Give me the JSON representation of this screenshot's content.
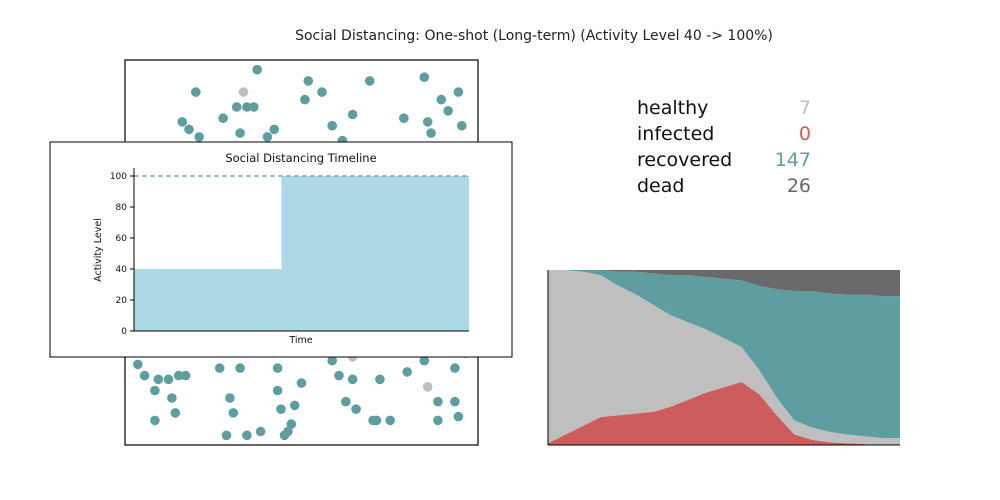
{
  "title": "Social Distancing: One-shot (Long-term) (Activity Level 40 -> 100%)",
  "colors": {
    "healthy": "#bfbfbf",
    "infected": "#cd5c5c",
    "recovered": "#5f9ea0",
    "dead": "#696969",
    "timeline_fill": "#add8e6",
    "timeline_line": "#5f9ea0"
  },
  "stats": [
    {
      "label": "healthy",
      "value": "7",
      "color": "#bfbfbf"
    },
    {
      "label": "infected",
      "value": "0",
      "color": "#cd5c5c"
    },
    {
      "label": "recovered",
      "value": "147",
      "color": "#5f9ea0"
    },
    {
      "label": "dead",
      "value": "26",
      "color": "#696969"
    }
  ],
  "chart_data": [
    {
      "type": "scatter",
      "description_of_state": "population simulation particles",
      "points": [
        {
          "x": 0.19,
          "y": 0.93,
          "s": "recovered"
        },
        {
          "x": 0.33,
          "y": 0.93,
          "s": "healthy"
        },
        {
          "x": 0.36,
          "y": 0.89,
          "s": "recovered"
        },
        {
          "x": 0.37,
          "y": 0.99,
          "s": "recovered"
        },
        {
          "x": 0.52,
          "y": 0.96,
          "s": "recovered"
        },
        {
          "x": 0.51,
          "y": 0.91,
          "s": "recovered"
        },
        {
          "x": 0.56,
          "y": 0.93,
          "s": "recovered"
        },
        {
          "x": 0.7,
          "y": 0.96,
          "s": "recovered"
        },
        {
          "x": 0.86,
          "y": 0.97,
          "s": "recovered"
        },
        {
          "x": 0.91,
          "y": 0.91,
          "s": "recovered"
        },
        {
          "x": 0.96,
          "y": 0.93,
          "s": "recovered"
        },
        {
          "x": 0.15,
          "y": 0.85,
          "s": "recovered"
        },
        {
          "x": 0.27,
          "y": 0.86,
          "s": "recovered"
        },
        {
          "x": 0.31,
          "y": 0.89,
          "s": "recovered"
        },
        {
          "x": 0.34,
          "y": 0.89,
          "s": "recovered"
        },
        {
          "x": 0.17,
          "y": 0.83,
          "s": "recovered"
        },
        {
          "x": 0.65,
          "y": 0.87,
          "s": "recovered"
        },
        {
          "x": 0.8,
          "y": 0.86,
          "s": "recovered"
        },
        {
          "x": 0.87,
          "y": 0.85,
          "s": "recovered"
        },
        {
          "x": 0.93,
          "y": 0.88,
          "s": "recovered"
        },
        {
          "x": 0.97,
          "y": 0.84,
          "s": "recovered"
        },
        {
          "x": 0.2,
          "y": 0.81,
          "s": "recovered"
        },
        {
          "x": 0.32,
          "y": 0.82,
          "s": "recovered"
        },
        {
          "x": 0.42,
          "y": 0.83,
          "s": "recovered"
        },
        {
          "x": 0.4,
          "y": 0.81,
          "s": "recovered"
        },
        {
          "x": 0.59,
          "y": 0.84,
          "s": "recovered"
        },
        {
          "x": 0.62,
          "y": 0.8,
          "s": "recovered"
        },
        {
          "x": 0.88,
          "y": 0.82,
          "s": "recovered"
        },
        {
          "x": 0.94,
          "y": 0.78,
          "s": "recovered"
        },
        {
          "x": 0.02,
          "y": 0.2,
          "s": "recovered"
        },
        {
          "x": 0.04,
          "y": 0.17,
          "s": "recovered"
        },
        {
          "x": 0.08,
          "y": 0.16,
          "s": "recovered"
        },
        {
          "x": 0.11,
          "y": 0.16,
          "s": "recovered"
        },
        {
          "x": 0.14,
          "y": 0.17,
          "s": "recovered"
        },
        {
          "x": 0.16,
          "y": 0.17,
          "s": "recovered"
        },
        {
          "x": 0.26,
          "y": 0.19,
          "s": "recovered"
        },
        {
          "x": 0.32,
          "y": 0.19,
          "s": "recovered"
        },
        {
          "x": 0.43,
          "y": 0.19,
          "s": "recovered"
        },
        {
          "x": 0.5,
          "y": 0.15,
          "s": "recovered"
        },
        {
          "x": 0.59,
          "y": 0.21,
          "s": "recovered"
        },
        {
          "x": 0.61,
          "y": 0.17,
          "s": "recovered"
        },
        {
          "x": 0.65,
          "y": 0.16,
          "s": "recovered"
        },
        {
          "x": 0.73,
          "y": 0.16,
          "s": "recovered"
        },
        {
          "x": 0.81,
          "y": 0.18,
          "s": "recovered"
        },
        {
          "x": 0.86,
          "y": 0.21,
          "s": "recovered"
        },
        {
          "x": 0.95,
          "y": 0.19,
          "s": "recovered"
        },
        {
          "x": 0.98,
          "y": 0.23,
          "s": "recovered"
        },
        {
          "x": 0.65,
          "y": 0.22,
          "s": "healthy"
        },
        {
          "x": 0.87,
          "y": 0.14,
          "s": "healthy"
        },
        {
          "x": 0.07,
          "y": 0.13,
          "s": "recovered"
        },
        {
          "x": 0.12,
          "y": 0.11,
          "s": "recovered"
        },
        {
          "x": 0.29,
          "y": 0.11,
          "s": "recovered"
        },
        {
          "x": 0.43,
          "y": 0.13,
          "s": "recovered"
        },
        {
          "x": 0.48,
          "y": 0.09,
          "s": "recovered"
        },
        {
          "x": 0.63,
          "y": 0.1,
          "s": "recovered"
        },
        {
          "x": 0.66,
          "y": 0.08,
          "s": "recovered"
        },
        {
          "x": 0.9,
          "y": 0.1,
          "s": "recovered"
        },
        {
          "x": 0.95,
          "y": 0.1,
          "s": "recovered"
        },
        {
          "x": 0.13,
          "y": 0.07,
          "s": "recovered"
        },
        {
          "x": 0.3,
          "y": 0.07,
          "s": "recovered"
        },
        {
          "x": 0.44,
          "y": 0.08,
          "s": "recovered"
        },
        {
          "x": 0.47,
          "y": 0.04,
          "s": "recovered"
        },
        {
          "x": 0.71,
          "y": 0.05,
          "s": "recovered"
        },
        {
          "x": 0.96,
          "y": 0.06,
          "s": "recovered"
        },
        {
          "x": 0.07,
          "y": 0.05,
          "s": "recovered"
        },
        {
          "x": 0.46,
          "y": 0.02,
          "s": "recovered"
        },
        {
          "x": 0.9,
          "y": 0.05,
          "s": "recovered"
        },
        {
          "x": 0.28,
          "y": 0.01,
          "s": "recovered"
        },
        {
          "x": 0.34,
          "y": 0.01,
          "s": "recovered"
        },
        {
          "x": 0.38,
          "y": 0.02,
          "s": "recovered"
        },
        {
          "x": 0.45,
          "y": 0.01,
          "s": "recovered"
        },
        {
          "x": 0.72,
          "y": 0.05,
          "s": "recovered"
        },
        {
          "x": 0.76,
          "y": 0.05,
          "s": "recovered"
        },
        {
          "x": 0.06,
          "y": 0.24,
          "s": "recovered"
        },
        {
          "x": 0.17,
          "y": 0.25,
          "s": "recovered"
        },
        {
          "x": 0.38,
          "y": 0.26,
          "s": "recovered"
        },
        {
          "x": 0.64,
          "y": 0.24,
          "s": "recovered"
        },
        {
          "x": 0.78,
          "y": 0.24,
          "s": "recovered"
        },
        {
          "x": 0.39,
          "y": 0.46,
          "s": "recovered"
        }
      ]
    },
    {
      "type": "line",
      "title": "Social Distancing Timeline",
      "xlabel": "Time",
      "ylabel": "Activity Level",
      "ylim": [
        0,
        100
      ],
      "yticks": [
        0,
        20,
        40,
        60,
        80,
        100
      ],
      "steps": [
        {
          "x_from": 0,
          "x_to": 0.44,
          "value": 40
        },
        {
          "x_from": 0.44,
          "x_to": 1.0,
          "value": 100
        }
      ],
      "reference_line": 100
    },
    {
      "type": "area",
      "description_of_state": "stacked population composition over time",
      "stack_order": [
        "infected",
        "healthy",
        "recovered",
        "dead"
      ],
      "x": [
        0,
        5,
        10,
        15,
        20,
        25,
        30,
        35,
        40,
        45,
        50,
        55,
        60,
        65,
        70,
        75,
        80,
        85,
        90,
        95,
        100
      ],
      "series": [
        {
          "name": "infected",
          "values": [
            0.01,
            0.06,
            0.11,
            0.16,
            0.17,
            0.18,
            0.19,
            0.22,
            0.26,
            0.3,
            0.33,
            0.36,
            0.29,
            0.17,
            0.06,
            0.03,
            0.015,
            0.01,
            0.005,
            0.0,
            0.0
          ]
        },
        {
          "name": "healthy",
          "values": [
            0.99,
            0.94,
            0.88,
            0.81,
            0.74,
            0.68,
            0.61,
            0.52,
            0.44,
            0.36,
            0.28,
            0.2,
            0.14,
            0.1,
            0.08,
            0.07,
            0.06,
            0.05,
            0.045,
            0.04,
            0.04
          ]
        },
        {
          "name": "recovered",
          "values": [
            0.0,
            0.0,
            0.01,
            0.03,
            0.08,
            0.13,
            0.18,
            0.23,
            0.27,
            0.3,
            0.34,
            0.38,
            0.48,
            0.62,
            0.74,
            0.78,
            0.79,
            0.8,
            0.81,
            0.81,
            0.81
          ]
        },
        {
          "name": "dead",
          "values": [
            0.0,
            0.0,
            0.0,
            0.0,
            0.01,
            0.01,
            0.02,
            0.03,
            0.03,
            0.04,
            0.05,
            0.06,
            0.09,
            0.11,
            0.12,
            0.12,
            0.135,
            0.14,
            0.14,
            0.15,
            0.15
          ]
        }
      ]
    }
  ]
}
